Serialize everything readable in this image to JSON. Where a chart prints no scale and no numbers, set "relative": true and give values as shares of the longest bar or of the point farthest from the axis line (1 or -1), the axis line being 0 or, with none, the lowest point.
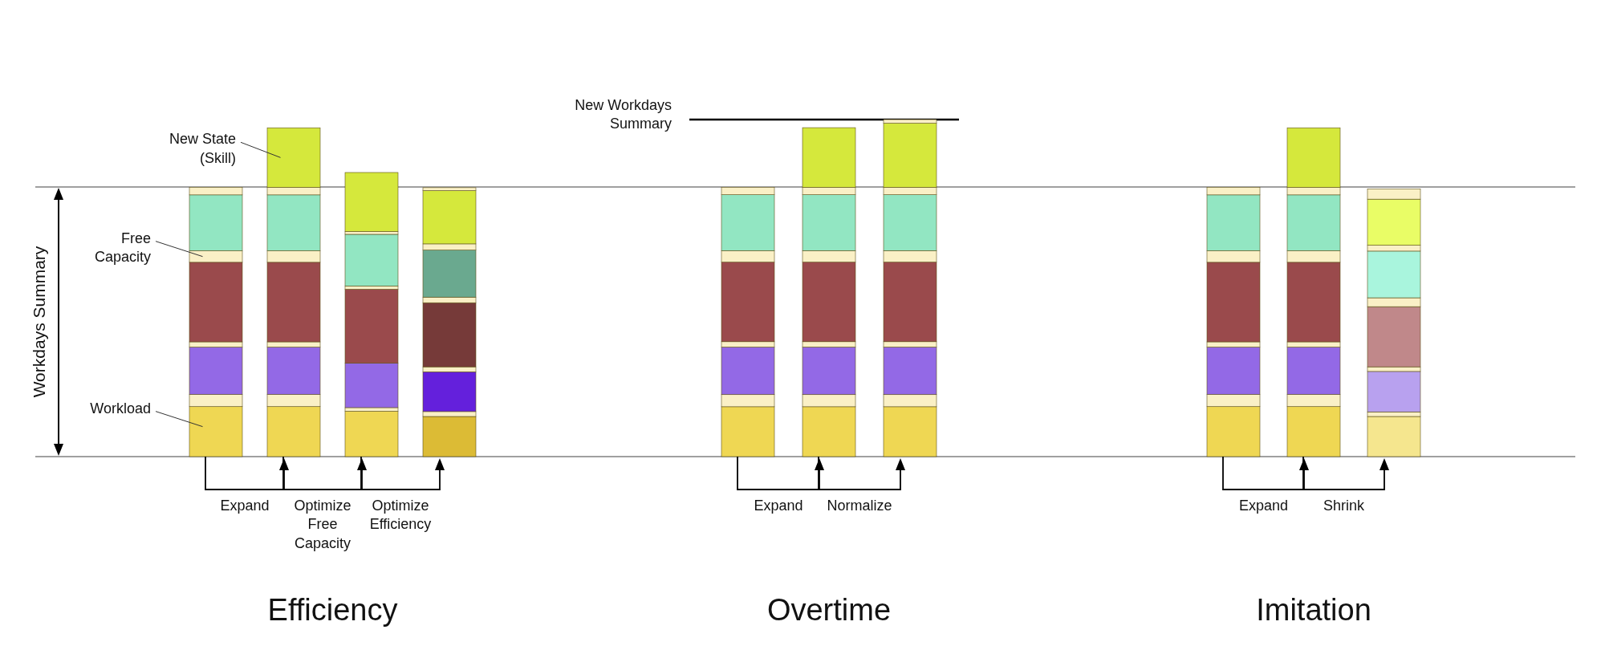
{
  "chart_data": [
    {
      "type": "bar",
      "title": "Efficiency",
      "ylabel": "Workdays Summary",
      "relative": true,
      "stacked": true,
      "categories": [
        null,
        null,
        null,
        null
      ],
      "series": [
        {
          "colors": [
            "#efd753",
            "#efd753",
            "#efd753",
            "#dcbb35"
          ],
          "values": [
            0.152,
            0.152,
            0.138,
            0.122
          ]
        },
        {
          "colors": [
            "#faf0c6",
            "#faf0c6",
            "#faf0c6",
            "#faf0c6"
          ],
          "values": [
            0.037,
            0.037,
            0.011,
            0.015
          ]
        },
        {
          "colors": [
            "#9369e6",
            "#9369e6",
            "#9369e6",
            "#6420dc"
          ],
          "values": [
            0.144,
            0.144,
            0.135,
            0.121
          ]
        },
        {
          "colors": [
            "#faf0c6",
            "#faf0c6",
            "#faf0c6",
            "#faf0c6"
          ],
          "values": [
            0.016,
            0.016,
            0,
            0.015
          ]
        },
        {
          "colors": [
            "#9a4a4c",
            "#9a4a4c",
            "#9a4a4c",
            "#763a39"
          ],
          "values": [
            0.242,
            0.242,
            0.225,
            0.195
          ]
        },
        {
          "colors": [
            "#faf0c6",
            "#faf0c6",
            "#faf0c6",
            "#faf0c6"
          ],
          "values": [
            0.035,
            0.035,
            0.01,
            0.017
          ]
        },
        {
          "colors": [
            "#92e6c2",
            "#92e6c2",
            "#92e6c2",
            "#6aa98f"
          ],
          "values": [
            0.17,
            0.17,
            0.157,
            0.143
          ]
        },
        {
          "colors": [
            "#faf0c6",
            "#faf0c6",
            "#faf0c6",
            "#faf0c6"
          ],
          "values": [
            0.023,
            0.023,
            0.009,
            0.019
          ]
        },
        {
          "colors": [
            "#d5e83c",
            "#d5e83c",
            "#d5e83c",
            "#d5e83c"
          ],
          "values": [
            0,
            0.181,
            0.179,
            0.162
          ]
        },
        {
          "colors": [
            "#faf0c6",
            "#faf0c6",
            "#faf0c6",
            "#faf0c6"
          ],
          "values": [
            0,
            0,
            0,
            0.009
          ]
        }
      ],
      "ref_lines": [
        {
          "axis": "y",
          "value": 0.82,
          "color": "#808080"
        }
      ],
      "annotations": [
        "New State (Skill)",
        "Free Capacity",
        "Workload",
        "Expand",
        "Optimize Free Capacity",
        "Optimize Efficiency"
      ]
    },
    {
      "type": "bar",
      "title": "Overtime",
      "relative": true,
      "stacked": true,
      "categories": [
        null,
        null,
        null
      ],
      "series": [
        {
          "colors": [
            "#efd753",
            "#efd753",
            "#efd753"
          ],
          "values": [
            0.148,
            0.148,
            0.148
          ]
        },
        {
          "colors": [
            "#faf0c6",
            "#faf0c6",
            "#faf0c6"
          ],
          "values": [
            0.036,
            0.036,
            0.036
          ]
        },
        {
          "colors": [
            "#9369e6",
            "#9369e6",
            "#9369e6"
          ],
          "values": [
            0.141,
            0.141,
            0.141
          ]
        },
        {
          "colors": [
            "#faf0c6",
            "#faf0c6",
            "#faf0c6"
          ],
          "values": [
            0.016,
            0.016,
            0.016
          ]
        },
        {
          "colors": [
            "#9a4a4c",
            "#9a4a4c",
            "#9a4a4c"
          ],
          "values": [
            0.236,
            0.236,
            0.236
          ]
        },
        {
          "colors": [
            "#faf0c6",
            "#faf0c6",
            "#faf0c6"
          ],
          "values": [
            0.034,
            0.034,
            0.034
          ]
        },
        {
          "colors": [
            "#92e6c2",
            "#92e6c2",
            "#92e6c2"
          ],
          "values": [
            0.166,
            0.166,
            0.166
          ]
        },
        {
          "colors": [
            "#faf0c6",
            "#faf0c6",
            "#faf0c6"
          ],
          "values": [
            0.022,
            0.022,
            0.022
          ]
        },
        {
          "colors": [
            "#d5e83c",
            "#d5e83c",
            "#d5e83c"
          ],
          "values": [
            0,
            0.177,
            0.19
          ]
        },
        {
          "colors": [
            "#faf0c6",
            "#faf0c6",
            "#faf0c6"
          ],
          "values": [
            0,
            0,
            0.011
          ]
        }
      ],
      "ref_lines": [
        {
          "axis": "y",
          "value": 0.8,
          "color": "#808080"
        },
        {
          "axis": "y",
          "value": 1,
          "label": "New Workdays Summary",
          "color": "#000000"
        }
      ],
      "annotations": [
        "Expand",
        "Normalize"
      ]
    },
    {
      "type": "bar",
      "title": "Imitation",
      "relative": true,
      "stacked": true,
      "categories": [
        null,
        null,
        null
      ],
      "series": [
        {
          "colors": [
            "#efd753",
            "#efd753",
            "#f5e68e"
          ],
          "values": [
            0.152,
            0.152,
            0.122
          ]
        },
        {
          "colors": [
            "#faf0c6",
            "#faf0c6",
            "#faf0c6"
          ],
          "values": [
            0.037,
            0.037,
            0.014
          ]
        },
        {
          "colors": [
            "#9369e6",
            "#9369e6",
            "#b8a1ef"
          ],
          "values": [
            0.144,
            0.144,
            0.123
          ]
        },
        {
          "colors": [
            "#faf0c6",
            "#faf0c6",
            "#faf0c6"
          ],
          "values": [
            0.016,
            0.016,
            0.014
          ]
        },
        {
          "colors": [
            "#9a4a4c",
            "#9a4a4c",
            "#c0888a"
          ],
          "values": [
            0.242,
            0.242,
            0.183
          ]
        },
        {
          "colors": [
            "#faf0c6",
            "#faf0c6",
            "#faf0c6"
          ],
          "values": [
            0.035,
            0.035,
            0.027
          ]
        },
        {
          "colors": [
            "#92e6c2",
            "#92e6c2",
            "#a9f5dd"
          ],
          "values": [
            0.17,
            0.17,
            0.142
          ]
        },
        {
          "colors": [
            "#faf0c6",
            "#faf0c6",
            "#faf0c6"
          ],
          "values": [
            0.023,
            0.023,
            0.018
          ]
        },
        {
          "colors": [
            "#d5e83c",
            "#d5e83c",
            "#e9fd66"
          ],
          "values": [
            0,
            0.181,
            0.14
          ]
        },
        {
          "colors": [
            "#faf0c6",
            "#faf0c6",
            "#faf0c6"
          ],
          "values": [
            0,
            0,
            0.031
          ]
        }
      ],
      "ref_lines": [
        {
          "axis": "y",
          "value": 0.82,
          "color": "#808080"
        }
      ],
      "annotations": [
        "Expand",
        "Shrink"
      ]
    }
  ]
}
